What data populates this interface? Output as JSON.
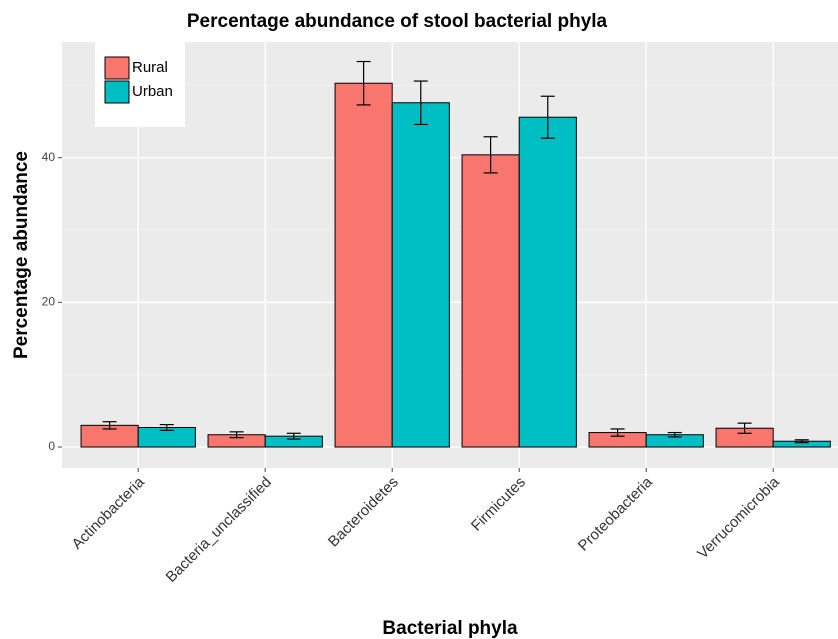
{
  "chart_data": {
    "type": "bar",
    "title": "Percentage abundance of stool bacterial phyla",
    "x_label": "Bacterial phyla",
    "y_label": "Percentage abundance",
    "categories": [
      "Actinobacteria",
      "Bacteria_unclassified",
      "Bacteroidetes",
      "Firmicutes",
      "Proteobacteria",
      "Verrucomicrobia"
    ],
    "series": [
      {
        "name": "Rural",
        "color": "#f8766d",
        "values": [
          3.0,
          1.7,
          50.3,
          40.4,
          2.0,
          2.6
        ],
        "errors": [
          0.5,
          0.4,
          3.0,
          2.5,
          0.5,
          0.7
        ]
      },
      {
        "name": "Urban",
        "color": "#00bfc4",
        "values": [
          2.7,
          1.5,
          47.6,
          45.6,
          1.7,
          0.8
        ],
        "errors": [
          0.4,
          0.4,
          3.0,
          2.9,
          0.3,
          0.2
        ]
      }
    ],
    "ylim": [
      -2.9,
      56
    ],
    "yticks": [
      0,
      20,
      40
    ],
    "minor_grid": [
      10,
      30,
      50
    ],
    "grid": true,
    "legend": "top-left"
  }
}
